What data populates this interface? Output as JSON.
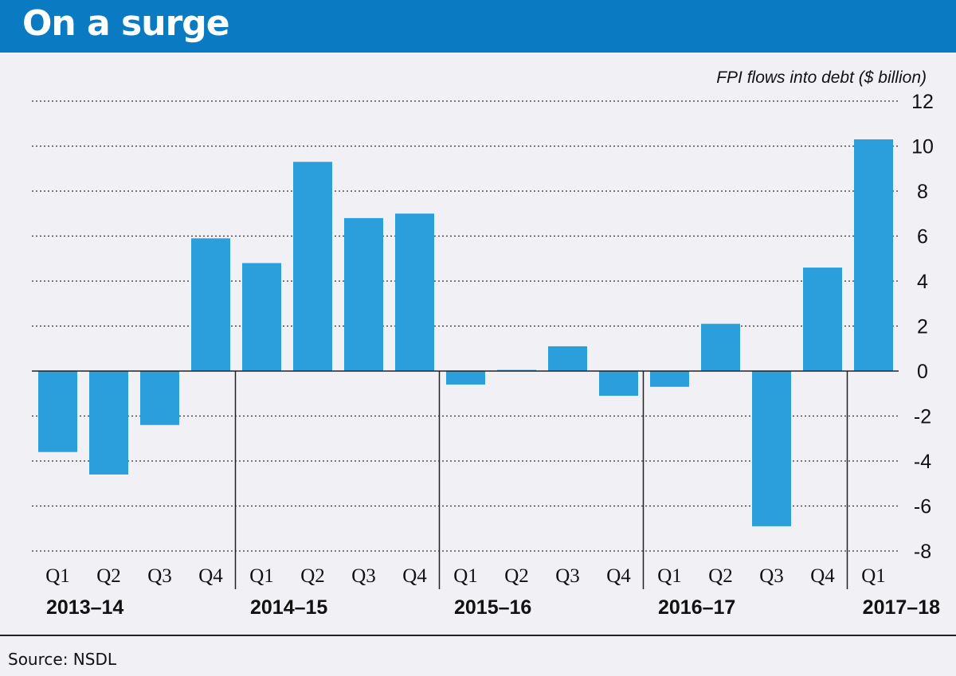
{
  "title": "On a surge",
  "source": "Source: NSDL",
  "chart_data": {
    "type": "bar",
    "ylabel": "FPI flows into debt ($ billion)",
    "ylim": [
      -8,
      12
    ],
    "yticks": [
      12,
      10,
      8,
      6,
      4,
      2,
      0,
      -2,
      -4,
      -6,
      -8
    ],
    "grid": true,
    "grid_style": "dotted",
    "bar_color": "#2b9fdc",
    "categories": [
      "Q1",
      "Q2",
      "Q3",
      "Q4",
      "Q1",
      "Q2",
      "Q3",
      "Q4",
      "Q1",
      "Q2",
      "Q3",
      "Q4",
      "Q1",
      "Q2",
      "Q3",
      "Q4",
      "Q1"
    ],
    "groups": [
      {
        "label": "2013-14",
        "count": 4
      },
      {
        "label": "2014-15",
        "count": 4
      },
      {
        "label": "2015-16",
        "count": 4
      },
      {
        "label": "2016-17",
        "count": 4
      },
      {
        "label": "2017-18",
        "count": 1
      }
    ],
    "values": [
      -3.6,
      -4.6,
      -2.4,
      5.9,
      4.8,
      9.3,
      6.8,
      7.0,
      -0.6,
      0.05,
      1.1,
      -1.1,
      -0.7,
      2.1,
      -6.9,
      4.6,
      10.3
    ]
  }
}
